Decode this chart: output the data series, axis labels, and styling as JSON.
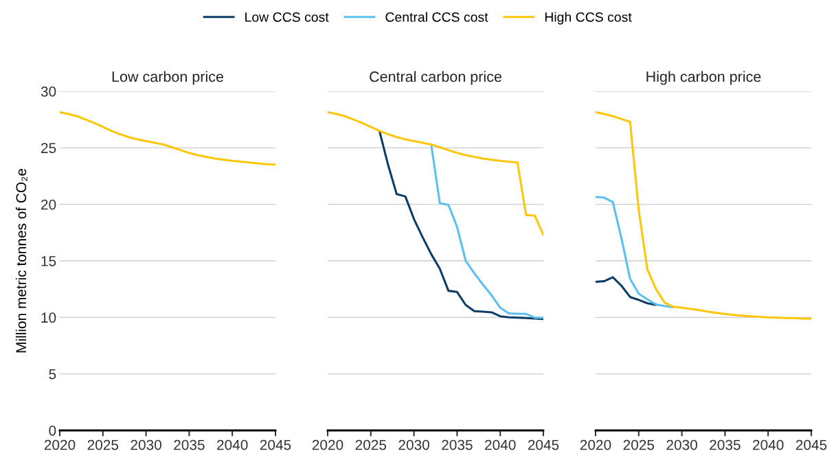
{
  "chart_data": [
    {
      "type": "line",
      "title": "Low carbon price",
      "ylabel": "Million metric tonnes of CO₂e",
      "x": [
        2020,
        2021,
        2022,
        2023,
        2024,
        2025,
        2026,
        2027,
        2028,
        2029,
        2030,
        2031,
        2032,
        2033,
        2034,
        2035,
        2036,
        2037,
        2038,
        2039,
        2040,
        2041,
        2042,
        2043,
        2044,
        2045
      ],
      "xlim": [
        2020,
        2045
      ],
      "xticks": [
        2020,
        2025,
        2030,
        2035,
        2040,
        2045
      ],
      "ylim": [
        0,
        30
      ],
      "yticks": [
        0,
        5,
        10,
        15,
        20,
        25,
        30
      ],
      "grid": "y",
      "legend": "top",
      "series": [
        {
          "name": "Low CCS cost",
          "color": "#0d3d66",
          "values": [
            null,
            null,
            null,
            null,
            null,
            null,
            null,
            null,
            null,
            null,
            null,
            null,
            null,
            null,
            null,
            null,
            null,
            null,
            null,
            null,
            null,
            null,
            null,
            null,
            null,
            null
          ]
        },
        {
          "name": "Central CCS cost",
          "color": "#5bc0f0",
          "values": [
            null,
            null,
            null,
            null,
            null,
            null,
            null,
            null,
            null,
            null,
            null,
            null,
            null,
            null,
            null,
            null,
            null,
            null,
            null,
            null,
            null,
            null,
            null,
            null,
            null,
            null
          ]
        },
        {
          "name": "High CCS cost",
          "color": "#ffc60b",
          "values": [
            28.15,
            28.0,
            27.8,
            27.5,
            27.2,
            26.85,
            26.5,
            26.2,
            25.95,
            25.75,
            25.6,
            25.45,
            25.3,
            25.05,
            24.8,
            24.55,
            24.35,
            24.2,
            24.05,
            23.95,
            23.85,
            23.78,
            23.7,
            23.62,
            23.55,
            23.52
          ]
        }
      ]
    },
    {
      "type": "line",
      "title": "Central carbon price",
      "x": [
        2020,
        2021,
        2022,
        2023,
        2024,
        2025,
        2026,
        2027,
        2028,
        2029,
        2030,
        2031,
        2032,
        2033,
        2034,
        2035,
        2036,
        2037,
        2038,
        2039,
        2040,
        2041,
        2042,
        2043,
        2044,
        2045
      ],
      "xlim": [
        2020,
        2045
      ],
      "xticks": [
        2020,
        2025,
        2030,
        2035,
        2040,
        2045
      ],
      "ylim": [
        0,
        30
      ],
      "yticks": [
        0,
        5,
        10,
        15,
        20,
        25,
        30
      ],
      "grid": "y",
      "tick_labels": "x",
      "series": [
        {
          "color": "#0d3d66",
          "values": [
            null,
            null,
            null,
            null,
            null,
            null,
            26.5,
            23.5,
            20.9,
            20.7,
            18.7,
            17.1,
            15.6,
            14.3,
            12.35,
            12.25,
            11.1,
            10.55,
            10.5,
            10.45,
            10.1,
            10.0,
            9.97,
            9.95,
            9.9,
            9.85
          ]
        },
        {
          "color": "#5bc0f0",
          "values": [
            null,
            null,
            null,
            null,
            null,
            null,
            null,
            null,
            null,
            null,
            null,
            null,
            25.3,
            20.1,
            19.95,
            18.0,
            15.0,
            13.9,
            12.9,
            11.95,
            10.85,
            10.35,
            10.32,
            10.3,
            9.98,
            9.98
          ]
        },
        {
          "color": "#ffc60b",
          "values": [
            28.15,
            28.0,
            27.8,
            27.5,
            27.2,
            26.85,
            26.5,
            26.2,
            25.95,
            25.75,
            25.6,
            25.45,
            25.3,
            25.05,
            24.8,
            24.55,
            24.35,
            24.2,
            24.05,
            23.95,
            23.85,
            23.78,
            23.7,
            19.05,
            19.0,
            17.3
          ]
        }
      ]
    },
    {
      "type": "line",
      "title": "High carbon price",
      "x": [
        2020,
        2021,
        2022,
        2023,
        2024,
        2025,
        2026,
        2027,
        2028,
        2029,
        2030,
        2031,
        2032,
        2033,
        2034,
        2035,
        2036,
        2037,
        2038,
        2039,
        2040,
        2041,
        2042,
        2043,
        2044,
        2045
      ],
      "xlim": [
        2020,
        2045
      ],
      "xticks": [
        2020,
        2025,
        2030,
        2035,
        2040,
        2045
      ],
      "ylim": [
        0,
        30
      ],
      "yticks": [
        0,
        5,
        10,
        15,
        20,
        25,
        30
      ],
      "grid": "y",
      "tick_labels": "x",
      "series": [
        {
          "color": "#0d3d66",
          "values": [
            13.15,
            13.2,
            13.55,
            12.8,
            11.8,
            11.55,
            11.25,
            11.1,
            null,
            null,
            null,
            null,
            null,
            null,
            null,
            null,
            null,
            null,
            null,
            null,
            null,
            null,
            null,
            null,
            null,
            null
          ]
        },
        {
          "color": "#5bc0f0",
          "values": [
            20.65,
            20.6,
            20.2,
            17.0,
            13.4,
            12.1,
            11.6,
            11.15,
            11.0,
            10.9,
            null,
            null,
            null,
            null,
            null,
            null,
            null,
            null,
            null,
            null,
            null,
            null,
            null,
            null,
            null,
            null
          ]
        },
        {
          "color": "#ffc60b",
          "values": [
            28.15,
            28.0,
            27.8,
            27.55,
            27.3,
            19.5,
            14.25,
            12.5,
            11.3,
            10.95,
            10.85,
            10.75,
            10.65,
            10.5,
            10.4,
            10.3,
            10.22,
            10.15,
            10.1,
            10.05,
            10.0,
            9.97,
            9.95,
            9.93,
            9.9,
            9.88
          ]
        }
      ]
    }
  ]
}
